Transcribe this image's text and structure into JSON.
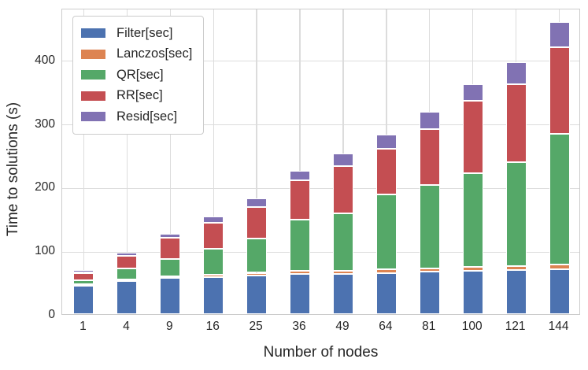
{
  "chart_data": {
    "type": "bar",
    "stacked": true,
    "xlabel": "Number of nodes",
    "ylabel": "Time to solutions (s)",
    "categories": [
      "1",
      "4",
      "9",
      "16",
      "25",
      "36",
      "49",
      "64",
      "81",
      "100",
      "121",
      "144"
    ],
    "series": [
      {
        "name": "Filter[sec]",
        "color": "#4C72B0",
        "values": [
          45,
          52,
          57,
          58,
          61,
          63,
          63,
          64,
          67,
          68,
          69,
          71
        ]
      },
      {
        "name": "Lanczos[sec]",
        "color": "#DD8452",
        "values": [
          2,
          3,
          3,
          4,
          4,
          5,
          5,
          6,
          5,
          6,
          6,
          7
        ]
      },
      {
        "name": "QR[sec]",
        "color": "#55A868",
        "values": [
          6,
          17,
          27,
          41,
          54,
          81,
          90,
          118,
          131,
          147,
          164,
          205
        ]
      },
      {
        "name": "RR[sec]",
        "color": "#C44E52",
        "values": [
          12,
          19,
          33,
          40,
          49,
          61,
          75,
          72,
          88,
          114,
          122,
          136
        ]
      },
      {
        "name": "Resid[sec]",
        "color": "#8172B3",
        "values": [
          4,
          5,
          6,
          10,
          14,
          15,
          20,
          22,
          27,
          26,
          35,
          40
        ]
      }
    ],
    "totals": [
      69,
      96,
      126,
      153,
      182,
      225,
      253,
      282,
      318,
      361,
      396,
      459
    ],
    "y_ticks": [
      0,
      100,
      200,
      300,
      400
    ],
    "ylim": [
      0,
      481
    ],
    "grid": true,
    "legend_position": "upper left",
    "colors": {
      "grid": "#dcdcdc",
      "spine": "#cccccc",
      "text": "#262626",
      "background": "#ffffff"
    }
  }
}
